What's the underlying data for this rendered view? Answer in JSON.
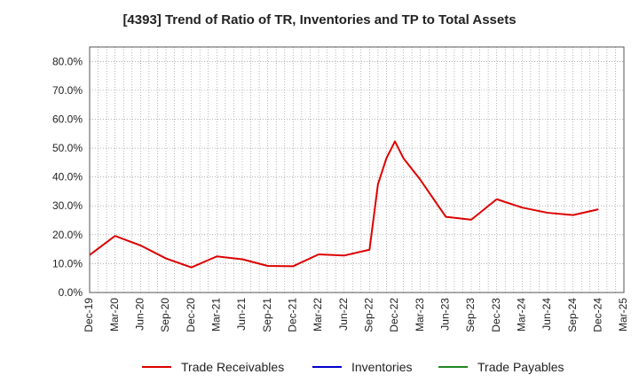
{
  "chart_data": {
    "type": "line",
    "title": "[4393]  Trend of Ratio of TR, Inventories and TP to Total Assets",
    "xlabel": "",
    "ylabel": "",
    "ylim": [
      0,
      85
    ],
    "y_ticks": [
      "0.0%",
      "10.0%",
      "20.0%",
      "30.0%",
      "40.0%",
      "50.0%",
      "60.0%",
      "70.0%",
      "80.0%"
    ],
    "x_ticks": [
      "Dec-19",
      "Mar-20",
      "Jun-20",
      "Sep-20",
      "Dec-20",
      "Mar-21",
      "Jun-21",
      "Sep-21",
      "Dec-21",
      "Mar-22",
      "Jun-22",
      "Sep-22",
      "Dec-22",
      "Mar-23",
      "Jun-23",
      "Sep-23",
      "Dec-23",
      "Mar-24",
      "Jun-24",
      "Sep-24",
      "Dec-24",
      "Mar-25"
    ],
    "grid": true,
    "legend_position": "bottom",
    "series": [
      {
        "name": "Trade Receivables",
        "color": "#dd0000",
        "x": [
          "Dec-19",
          "Mar-20",
          "Jun-20",
          "Sep-20",
          "Dec-20",
          "Mar-21",
          "Jun-21",
          "Sep-21",
          "Dec-21",
          "Mar-22",
          "Jun-22",
          "Sep-22",
          "Oct-22",
          "Nov-22",
          "Dec-22",
          "Jan-23",
          "Mar-23",
          "Jun-23",
          "Sep-23",
          "Dec-23",
          "Mar-24",
          "Jun-24",
          "Sep-24",
          "Dec-24"
        ],
        "values": [
          13.0,
          19.6,
          16.3,
          11.8,
          8.7,
          12.5,
          11.5,
          9.2,
          9.1,
          13.2,
          12.8,
          14.8,
          37.5,
          46.5,
          52.3,
          46.5,
          39.0,
          26.2,
          25.2,
          32.3,
          29.4,
          27.6,
          26.8,
          28.8
        ]
      },
      {
        "name": "Inventories",
        "color": "#0000cc",
        "x": [],
        "values": []
      },
      {
        "name": "Trade Payables",
        "color": "#228822",
        "x": [],
        "values": []
      }
    ]
  }
}
